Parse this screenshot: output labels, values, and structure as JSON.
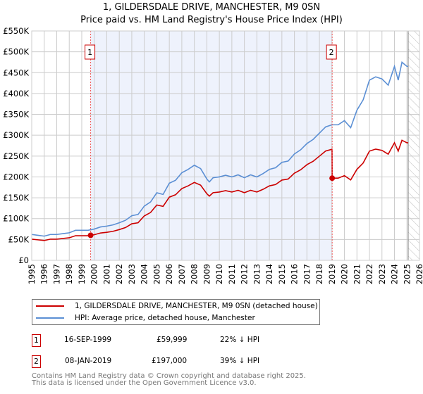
{
  "title_line1": "1, GILDERSDALE DRIVE, MANCHESTER, M9 0SN",
  "title_line2": "Price paid vs. HM Land Registry's House Price Index (HPI)",
  "chart_data": {
    "type": "line",
    "title": "1, GILDERSDALE DRIVE, MANCHESTER, M9 0SN — Price paid vs. HM Land Registry's House Price Index (HPI)",
    "xlim": [
      1995,
      2026
    ],
    "ylim": [
      0,
      550000
    ],
    "x_ticks": [
      "1995",
      "1996",
      "1997",
      "1998",
      "1999",
      "2000",
      "2001",
      "2002",
      "2003",
      "2004",
      "2005",
      "2006",
      "2007",
      "2008",
      "2009",
      "2010",
      "2011",
      "2012",
      "2013",
      "2014",
      "2015",
      "2016",
      "2017",
      "2018",
      "2019",
      "2020",
      "2021",
      "2022",
      "2023",
      "2024",
      "2025",
      "2026"
    ],
    "y_ticks": [
      {
        "v": 0,
        "label": "£0"
      },
      {
        "v": 50000,
        "label": "£50K"
      },
      {
        "v": 100000,
        "label": "£100K"
      },
      {
        "v": 150000,
        "label": "£150K"
      },
      {
        "v": 200000,
        "label": "£200K"
      },
      {
        "v": 250000,
        "label": "£250K"
      },
      {
        "v": 300000,
        "label": "£300K"
      },
      {
        "v": 350000,
        "label": "£350K"
      },
      {
        "v": 400000,
        "label": "£400K"
      },
      {
        "v": 450000,
        "label": "£450K"
      },
      {
        "v": 500000,
        "label": "£500K"
      },
      {
        "v": 550000,
        "label": "£550K"
      }
    ],
    "grid": true,
    "colors": {
      "property": "#cc0000",
      "hpi": "#5b8fd4",
      "shade": "#eef2fc"
    },
    "hpi": {
      "name": "HPI: Average price, detached house, Manchester",
      "x": [
        1995,
        1995.5,
        1996,
        1996.5,
        1997,
        1997.5,
        1998,
        1998.5,
        1999,
        1999.5,
        2000,
        2000.5,
        2001,
        2001.5,
        2002,
        2002.5,
        2003,
        2003.5,
        2004,
        2004.5,
        2005,
        2005.5,
        2006,
        2006.5,
        2007,
        2007.5,
        2008,
        2008.5,
        2009,
        2009.2,
        2009.5,
        2010,
        2010.5,
        2011,
        2011.5,
        2012,
        2012.5,
        2013,
        2013.5,
        2014,
        2014.5,
        2015,
        2015.5,
        2016,
        2016.5,
        2017,
        2017.5,
        2018,
        2018.5,
        2019,
        2019.5,
        2020,
        2020.5,
        2021,
        2021.5,
        2022,
        2022.5,
        2023,
        2023.5,
        2024,
        2024.3,
        2024.6,
        2025,
        2025.1
      ],
      "y": [
        62000,
        60000,
        58000,
        62000,
        62000,
        64000,
        66000,
        72000,
        72000,
        72000,
        75000,
        80000,
        82000,
        85000,
        90000,
        96000,
        107000,
        110000,
        130000,
        140000,
        162000,
        158000,
        185000,
        192000,
        210000,
        218000,
        228000,
        220000,
        195000,
        188000,
        198000,
        200000,
        204000,
        200000,
        205000,
        198000,
        205000,
        200000,
        208000,
        218000,
        222000,
        235000,
        238000,
        255000,
        265000,
        280000,
        290000,
        305000,
        320000,
        325000,
        325000,
        335000,
        318000,
        360000,
        385000,
        432000,
        440000,
        435000,
        420000,
        465000,
        432000,
        475000,
        465000,
        465000
      ]
    },
    "property": {
      "name": "1, GILDERSDALE DRIVE, MANCHESTER, M9 0SN (detached house)"
    },
    "sales": [
      {
        "id": "1",
        "year": 1999.71,
        "price": 59999
      },
      {
        "id": "2",
        "year": 2019.02,
        "price": 197000
      }
    ],
    "shaded_range": [
      1999.71,
      2019.02
    ],
    "forecast_hatch_from": 2025.1
  },
  "legend": {
    "property": "1, GILDERSDALE DRIVE, MANCHESTER, M9 0SN (detached house)",
    "hpi": "HPI: Average price, detached house, Manchester"
  },
  "sales_table": [
    {
      "id": "1",
      "date": "16-SEP-1999",
      "price": "£59,999",
      "delta": "22% ↓ HPI"
    },
    {
      "id": "2",
      "date": "08-JAN-2019",
      "price": "£197,000",
      "delta": "39% ↓ HPI"
    }
  ],
  "footer": {
    "line1": "Contains HM Land Registry data © Crown copyright and database right 2025.",
    "line2": "This data is licensed under the Open Government Licence v3.0."
  }
}
